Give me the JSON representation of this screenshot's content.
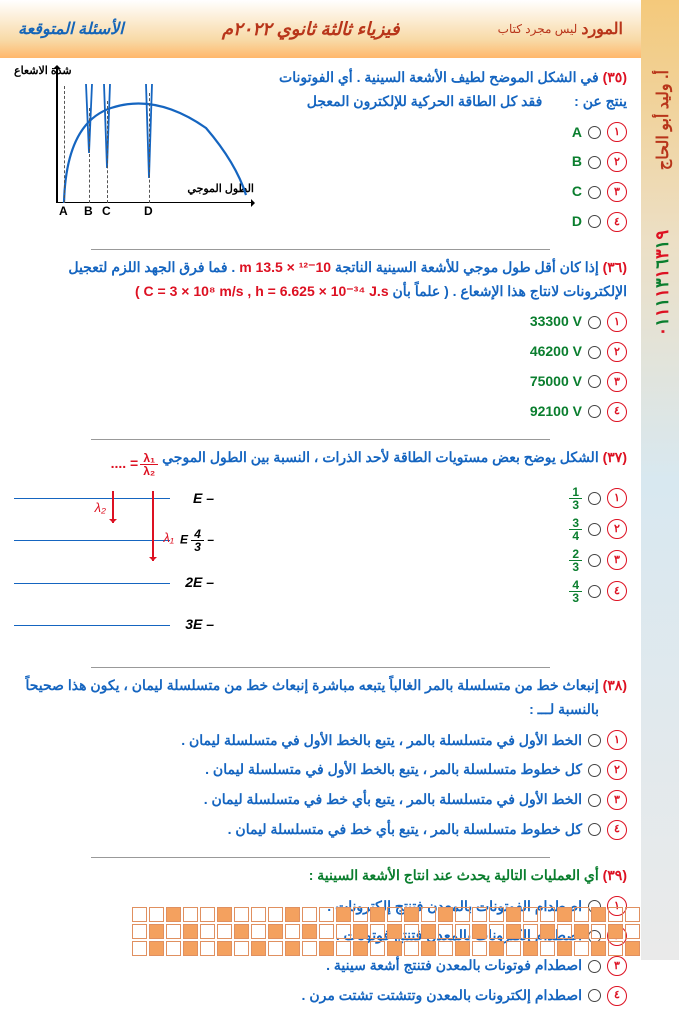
{
  "header": {
    "brand": "المورد",
    "brand_sub": "ليس مجرد كتاب",
    "center": "فيزياء ثالثة ثانوي ٢٠٢٢م",
    "left": "الأسئلة المتوقعة"
  },
  "side": {
    "author": "أ. وليد أبو الحاج",
    "phone_digits": [
      "٠",
      "١",
      "١",
      "١",
      "١",
      "٣",
      "١",
      "٦",
      "٣",
      "١",
      "٩"
    ],
    "phone_colors": [
      "r",
      "g",
      "r",
      "g",
      "r",
      "g",
      "r",
      "g",
      "r",
      "g",
      "r"
    ]
  },
  "colors": {
    "accent_red": "#d12222",
    "accent_blue": "#1565c0",
    "accent_green": "#0a7e2e",
    "accent_brown": "#b8351a"
  },
  "q35": {
    "num": "(٣٥)",
    "text": "في الشكل الموضح لطيف الأشعة السينية . أي الفوتونات ينتج عن :",
    "line2": "فقد كل الطاقة الحركية للإلكترون المعجل",
    "y_label": "شدة الاشعاع",
    "x_label": "الطول الموجي",
    "ticks": [
      "A",
      "B",
      "C",
      "D"
    ],
    "options": [
      "A",
      "B",
      "C",
      "D"
    ],
    "opt_nums": [
      "١",
      "٢",
      "٣",
      "٤"
    ]
  },
  "q36": {
    "num": "(٣٦)",
    "seg1": "إذا كان أقل طول موجي للأشعة السينية الناتجة ",
    "val1": "m",
    "val1b": " 10⁻¹² × 13.5",
    "seg2": " . فما فرق الجهد اللزم لتعجيل",
    "line2a": "الإلكترونات لانتاج هذا الإشعاع . ( علماً بأن ",
    "const": "C = 3 × 10⁸ m/s   ,   h = 6.625 × 10⁻³⁴ J.s",
    "line2c": " )",
    "options": [
      "33300 V",
      "46200 V",
      "75000 V",
      "92100 V"
    ],
    "opt_nums": [
      "١",
      "٢",
      "٣",
      "٤"
    ]
  },
  "q37": {
    "num": "(٣٧)",
    "text": "الشكل يوضح بعض مستويات الطاقة لأحد الذرات ، النسبة بين الطول الموجي ",
    "ratio_top": "λ₁",
    "ratio_bot": "λ₂",
    "dots": "= ....",
    "levels": [
      "– E",
      "",
      "– 2E",
      "– 3E"
    ],
    "level_mid": "– ⁴⁄₃ E",
    "lambda1": "λ₁",
    "lambda2": "λ₂",
    "options_num": [
      "1",
      "3"
    ],
    "options": [
      {
        "n": "1",
        "d": "3"
      },
      {
        "n": "3",
        "d": "4"
      },
      {
        "n": "2",
        "d": "3"
      },
      {
        "n": "4",
        "d": "3"
      }
    ],
    "opt_nums": [
      "١",
      "٢",
      "٣",
      "٤"
    ]
  },
  "q38": {
    "num": "(٣٨)",
    "text": "إنبعاث خط من متسلسلة بالمر الغالباً يتبعه مباشرة إنبعاث خط من متسلسلة ليمان ، يكون هذا صحيحاً",
    "line2": "بالنسبة لـــ :",
    "options": [
      "الخط الأول في متسلسلة بالمر ، يتبع بالخط الأول في متسلسلة ليمان .",
      "كل خطوط متسلسلة بالمر ، يتبع بالخط الأول في متسلسلة ليمان .",
      "الخط الأول في متسلسلة بالمر ، يتبع بأي خط في متسلسلة ليمان .",
      "كل خطوط متسلسلة بالمر ، يتبع بأي خط في متسلسلة ليمان ."
    ],
    "opt_nums": [
      "١",
      "٢",
      "٣",
      "٤"
    ]
  },
  "q39": {
    "num": "(٣٩)",
    "text": "أي العمليات التالية يحدث عند انتاج الأشعة السينية :",
    "options": [
      "اصطدام الفوتونات بالمعدن فتنتج إلكترونات .",
      "اصطدام إلكترونات بالمعدن فتنتج فوتونات .",
      "اصطدام فوتونات بالمعدن فتنتج أشعة سينية .",
      "اصطدام إلكترونات بالمعدن وتتشتت تشتت مرن ."
    ],
    "opt_nums": [
      "١",
      "٢",
      "٣",
      "٤"
    ]
  }
}
